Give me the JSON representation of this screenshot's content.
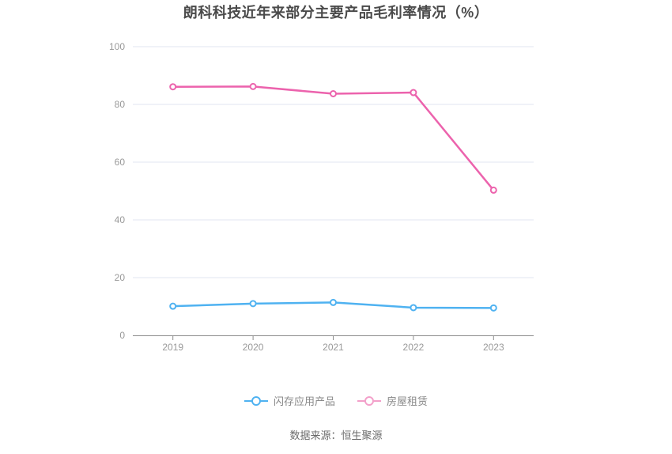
{
  "title": "朗科科技近年来部分主要产品毛利率情况（%）",
  "source": "数据来源：恒生聚源",
  "chart_data": {
    "type": "line",
    "categories": [
      "2019",
      "2020",
      "2021",
      "2022",
      "2023"
    ],
    "series": [
      {
        "name": "闪存应用产品",
        "slug": "flash-application-products",
        "color": "#4fb2f1",
        "legend_marker_color": "#4fb2f1",
        "values": [
          10.1,
          11.0,
          11.4,
          9.6,
          9.5
        ]
      },
      {
        "name": "房屋租赁",
        "slug": "housing-rental",
        "color": "#ec63ad",
        "legend_marker_color": "#f3a0ca",
        "values": [
          86.1,
          86.2,
          83.7,
          84.1,
          50.3
        ]
      }
    ],
    "ylim": [
      0,
      100
    ],
    "yticks": [
      0,
      20,
      40,
      60,
      80,
      100
    ],
    "grid": true,
    "legend_position": "bottom",
    "marker": "hollow-circle"
  }
}
